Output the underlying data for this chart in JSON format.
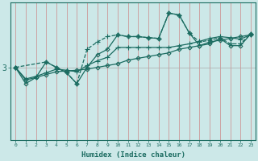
{
  "xlabel": "Humidex (Indice chaleur)",
  "background_color": "#cce8e8",
  "line_color": "#1a6b60",
  "grid_color": "#cc8888",
  "ytick_label": "3",
  "xlim": [
    -0.5,
    23.5
  ],
  "ylim_min": 1.0,
  "ylim_max": 4.8,
  "ytick_val": 3.0,
  "series": [
    {
      "x": [
        0,
        1,
        2,
        3,
        4,
        5,
        6,
        7,
        8,
        9,
        10,
        11,
        12,
        13,
        14,
        15,
        16,
        17,
        18,
        19,
        20,
        21,
        22,
        23
      ],
      "y": [
        3.0,
        2.65,
        2.72,
        2.8,
        2.88,
        2.9,
        2.92,
        2.95,
        3.0,
        3.05,
        3.1,
        3.2,
        3.25,
        3.3,
        3.35,
        3.4,
        3.5,
        3.55,
        3.6,
        3.7,
        3.75,
        3.8,
        3.85,
        3.9
      ],
      "marker": "D",
      "ms": 2.5,
      "lw": 0.9,
      "ls": "-"
    },
    {
      "x": [
        0,
        1,
        2,
        3,
        4,
        5,
        6,
        7,
        8,
        9,
        10,
        11,
        12,
        13,
        14,
        15,
        16,
        17,
        18,
        19,
        20,
        21,
        22,
        23
      ],
      "y": [
        3.0,
        2.68,
        2.75,
        2.85,
        2.95,
        2.92,
        2.88,
        3.05,
        3.18,
        3.28,
        3.55,
        3.55,
        3.55,
        3.55,
        3.55,
        3.55,
        3.6,
        3.65,
        3.72,
        3.8,
        3.85,
        3.82,
        3.78,
        3.9
      ],
      "marker": "+",
      "ms": 4,
      "lw": 0.9,
      "ls": "-"
    },
    {
      "x": [
        0,
        1,
        2,
        3,
        4,
        5,
        6,
        7,
        8,
        9,
        10,
        11,
        12,
        13,
        14,
        15,
        16,
        17,
        18,
        19,
        20,
        21,
        22,
        23
      ],
      "y": [
        3.0,
        2.55,
        2.72,
        3.15,
        3.0,
        2.85,
        2.55,
        3.0,
        3.35,
        3.5,
        3.9,
        3.85,
        3.85,
        3.82,
        3.8,
        4.5,
        4.45,
        3.95,
        3.6,
        3.65,
        3.8,
        3.6,
        3.6,
        3.92
      ],
      "marker": "D",
      "ms": 2.5,
      "lw": 0.9,
      "ls": "-"
    },
    {
      "x": [
        0,
        3,
        4,
        5,
        6,
        7,
        8,
        9,
        10,
        11,
        12,
        13,
        14,
        15,
        16,
        17,
        18,
        19,
        20,
        21,
        22,
        23
      ],
      "y": [
        3.0,
        3.15,
        3.0,
        2.85,
        2.55,
        3.5,
        3.7,
        3.85,
        3.9,
        3.85,
        3.85,
        3.82,
        3.8,
        4.5,
        4.45,
        3.95,
        3.7,
        3.75,
        3.82,
        3.65,
        3.65,
        3.92
      ],
      "marker": "+",
      "ms": 4,
      "lw": 0.9,
      "ls": "--"
    }
  ]
}
